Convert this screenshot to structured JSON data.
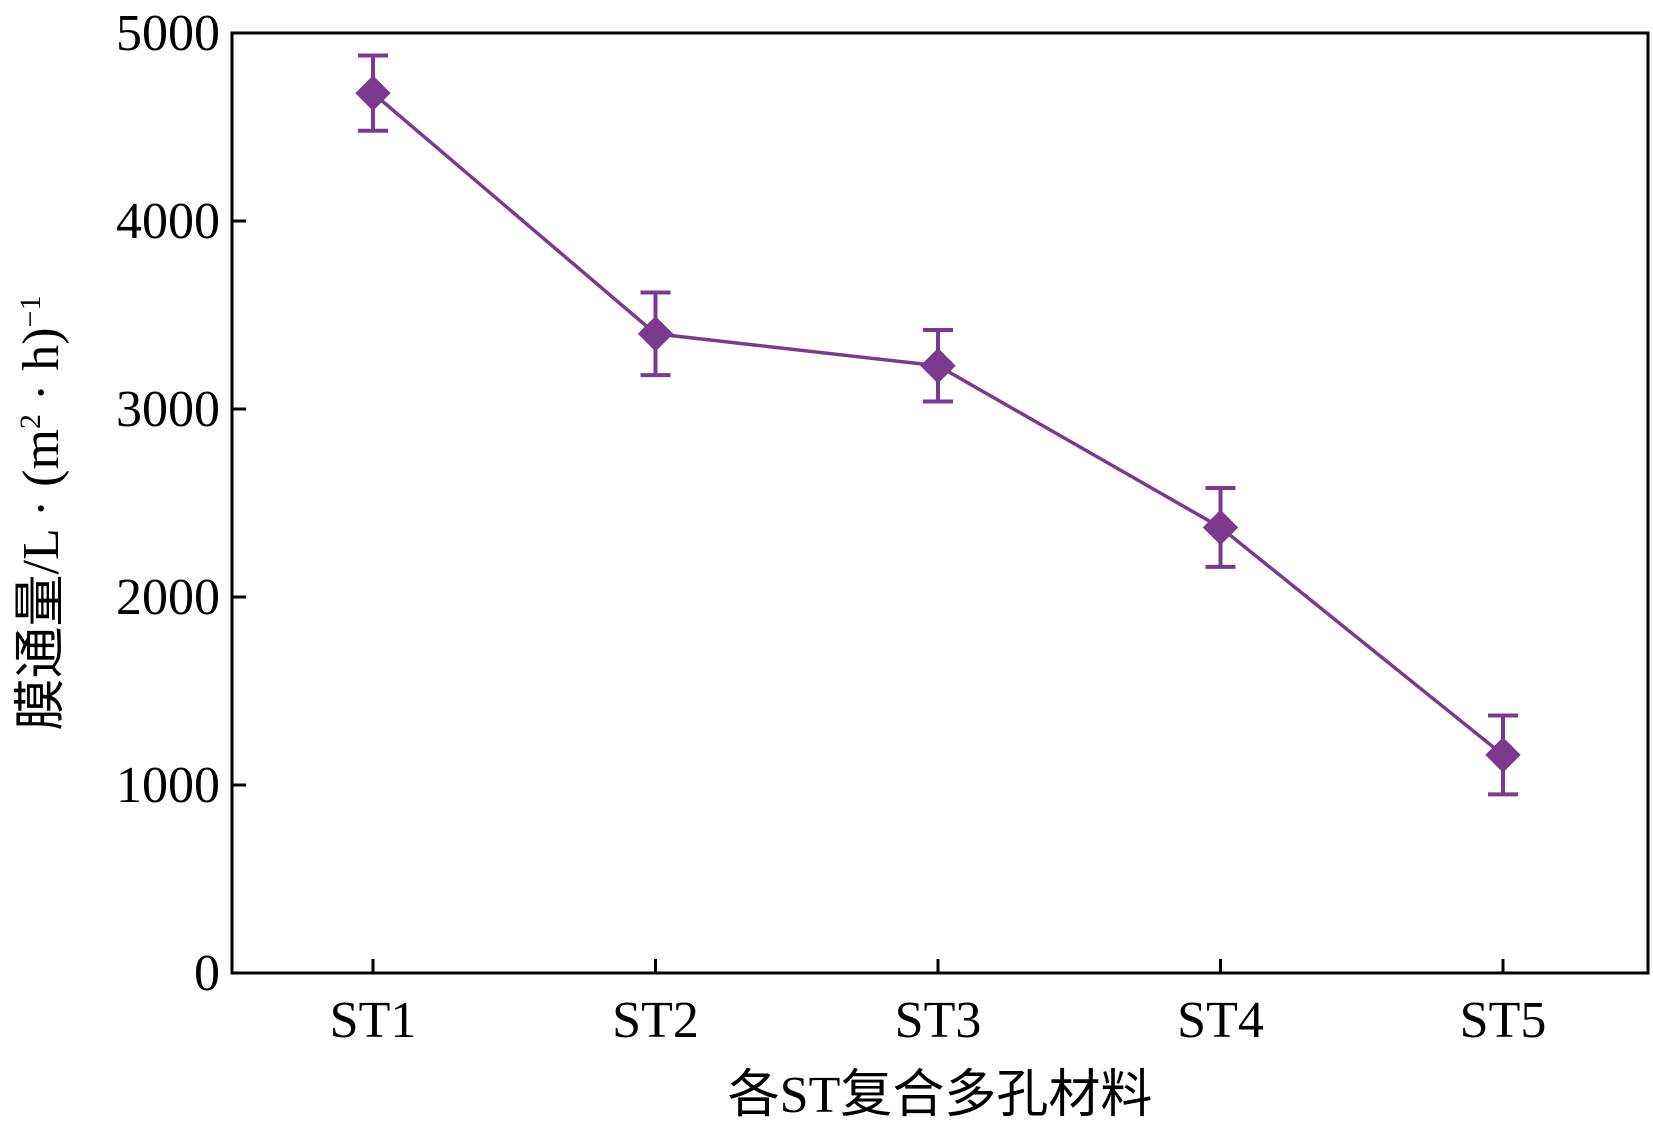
{
  "chart_data": {
    "type": "line",
    "categories": [
      "ST1",
      "ST2",
      "ST3",
      "ST4",
      "ST5"
    ],
    "series": [
      {
        "values": [
          4680,
          3400,
          3230,
          2370,
          1160
        ],
        "error": [
          200,
          220,
          190,
          210,
          210
        ],
        "color": "#7b3a8f",
        "marker": "diamond"
      }
    ],
    "title": "",
    "xlabel": "各ST复合多孔材料",
    "ylabel_parts": {
      "main": "膜通量/L · (m",
      "sup1": "2",
      "mid": " · h)",
      "sup2": "−1"
    },
    "ylim": [
      0,
      5000
    ],
    "yticks": [
      "0",
      "1000",
      "2000",
      "3000",
      "4000",
      "5000"
    ],
    "grid": false,
    "legend": "none"
  }
}
